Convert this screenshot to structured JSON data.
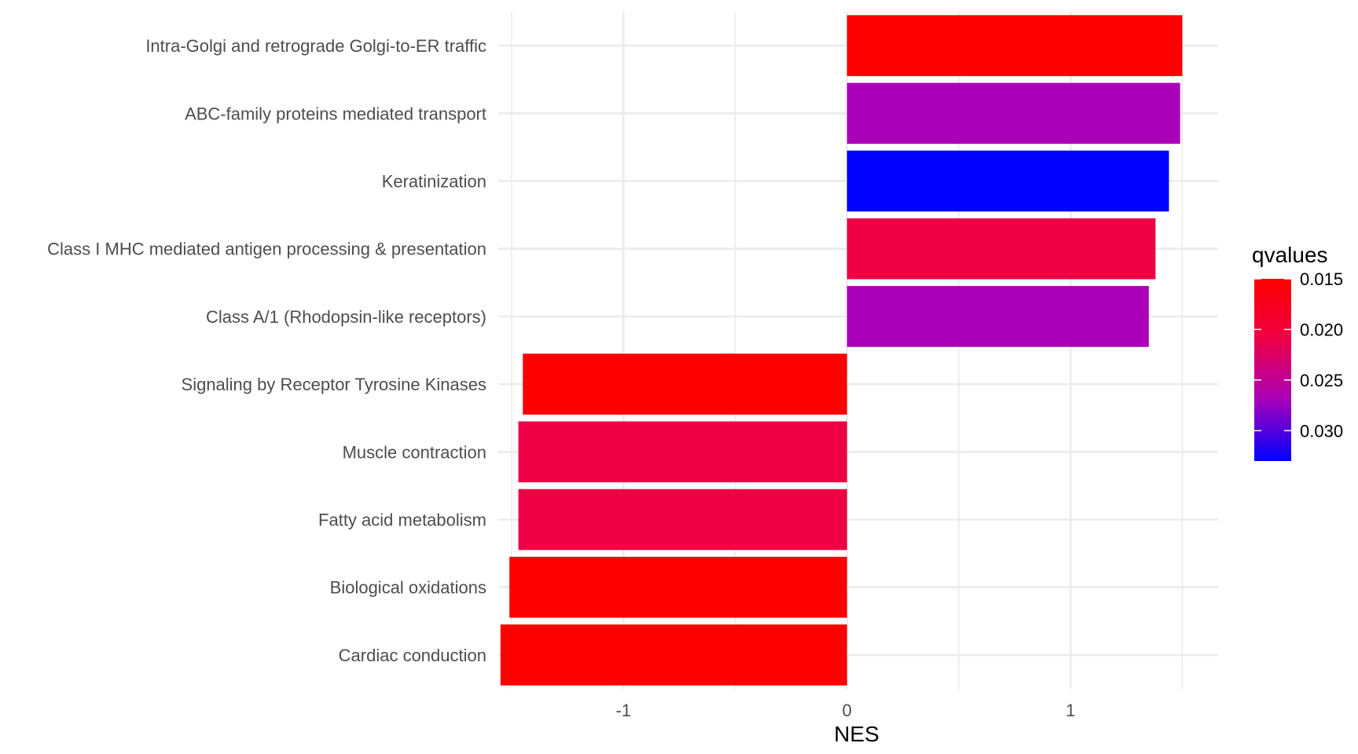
{
  "chart_data": {
    "type": "bar",
    "orientation": "horizontal",
    "xlabel": "NES",
    "ylabel": "",
    "xlim": [
      -1.56,
      1.66
    ],
    "xticks": [
      -1,
      0,
      1
    ],
    "xtick_labels": [
      "-1",
      "0",
      "1"
    ],
    "grid": true,
    "categories": [
      "Intra-Golgi and retrograde Golgi-to-ER traffic",
      "ABC-family proteins mediated transport",
      "Keratinization",
      "Class I MHC mediated antigen processing & presentation",
      "Class A/1 (Rhodopsin-like receptors)",
      "Signaling by Receptor Tyrosine Kinases",
      "Muscle contraction",
      "Fatty acid metabolism",
      "Biological oxidations",
      "Cardiac conduction"
    ],
    "values": [
      1.5,
      1.49,
      1.44,
      1.38,
      1.35,
      -1.45,
      -1.47,
      -1.47,
      -1.51,
      -1.55
    ],
    "qvalues": [
      0.015,
      0.026,
      0.033,
      0.019,
      0.026,
      0.015,
      0.019,
      0.019,
      0.015,
      0.015
    ],
    "colors": [
      "#ff0000",
      "#a900b8",
      "#0000ff",
      "#ef0046",
      "#a900b8",
      "#ff0000",
      "#ef0046",
      "#ef0046",
      "#ff0000",
      "#ff0000"
    ],
    "legend": {
      "title": "qvalues",
      "placement": "right",
      "range": [
        0.015,
        0.033
      ],
      "ticks": [
        0.015,
        0.02,
        0.025,
        0.03
      ],
      "tick_labels": [
        "0.015",
        "0.020",
        "0.025",
        "0.030"
      ],
      "low_color": "#ff0000",
      "high_color": "#0000ff"
    }
  }
}
